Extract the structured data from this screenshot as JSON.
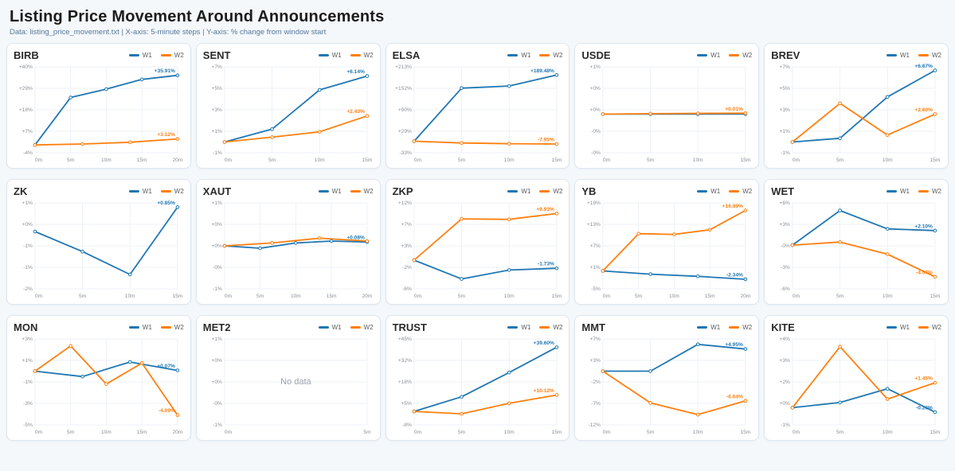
{
  "header": {
    "title": "Listing Price Movement Around Announcements",
    "subtitle": "Data: listing_price_movement.txt | X-axis: 5-minute steps | Y-axis: % change from window start"
  },
  "legend": {
    "w1": "W1",
    "w2": "W2"
  },
  "colors": {
    "w1": "#1f77b4",
    "w2": "#ff7f0e"
  },
  "no_data_label": "No data",
  "chart_data": [
    {
      "ticker": "BIRB",
      "type": "line",
      "x_max": 20,
      "x_ticks": [
        "0m",
        "5m",
        "10m",
        "15m",
        "20m"
      ],
      "y_tick_labels": [
        "+40%",
        "+29%",
        "+18%",
        "+7%",
        "-4%"
      ],
      "ylim": [
        -4,
        40.3
      ],
      "no_data": false,
      "series": [
        {
          "name": "W1",
          "color_key": "w1",
          "x": [
            0,
            5,
            10,
            15,
            20
          ],
          "y": [
            0,
            24.5,
            28.8,
            33.8,
            35.91
          ],
          "end_label": "+35.91%"
        },
        {
          "name": "W2",
          "color_key": "w2",
          "x": [
            0,
            6.67,
            13.33,
            20
          ],
          "y": [
            0,
            0.5,
            1.4,
            3.12
          ],
          "end_label": "+3.12%"
        }
      ]
    },
    {
      "ticker": "SENT",
      "type": "line",
      "x_max": 15,
      "x_ticks": [
        "0m",
        "5m",
        "10m",
        "15m"
      ],
      "y_tick_labels": [
        "+7%",
        "+5%",
        "+3%",
        "+1%",
        "-1%"
      ],
      "ylim": [
        -1,
        7
      ],
      "no_data": false,
      "series": [
        {
          "name": "W1",
          "color_key": "w1",
          "x": [
            0,
            5,
            10,
            15
          ],
          "y": [
            0,
            1.2,
            4.85,
            6.14
          ],
          "end_label": "+6.14%"
        },
        {
          "name": "W2",
          "color_key": "w2",
          "x": [
            0,
            5,
            10,
            15
          ],
          "y": [
            0,
            0.45,
            0.95,
            2.43
          ],
          "end_label": "+2.43%"
        }
      ]
    },
    {
      "ticker": "ELSA",
      "type": "line",
      "x_max": 15,
      "x_ticks": [
        "0m",
        "5m",
        "10m",
        "15m"
      ],
      "y_tick_labels": [
        "+213%",
        "+152%",
        "+90%",
        "+29%",
        "-33%"
      ],
      "ylim": [
        -33,
        213
      ],
      "no_data": false,
      "series": [
        {
          "name": "W1",
          "color_key": "w1",
          "x": [
            0,
            5,
            10,
            15
          ],
          "y": [
            0,
            152,
            158,
            189.48
          ],
          "end_label": "+189.48%"
        },
        {
          "name": "W2",
          "color_key": "w2",
          "x": [
            0,
            5,
            10,
            15
          ],
          "y": [
            0,
            -5,
            -7,
            -7.95
          ],
          "end_label": "-7.95%"
        }
      ]
    },
    {
      "ticker": "USDE",
      "type": "line",
      "x_max": 15,
      "x_ticks": [
        "0m",
        "5m",
        "10m",
        "15m"
      ],
      "y_tick_labels": [
        "+1%",
        "+0%",
        "+0%",
        "-0%",
        "-0%"
      ],
      "ylim": [
        -0.45,
        0.55
      ],
      "no_data": false,
      "series": [
        {
          "name": "W1",
          "color_key": "w1",
          "x": [
            0,
            5,
            10,
            15
          ],
          "y": [
            0,
            0,
            0,
            0
          ],
          "end_label": ""
        },
        {
          "name": "W2",
          "color_key": "w2",
          "x": [
            0,
            5,
            10,
            15
          ],
          "y": [
            0,
            0.005,
            0.008,
            0.01
          ],
          "end_label": "+0.01%"
        }
      ]
    },
    {
      "ticker": "BREV",
      "type": "line",
      "x_max": 15,
      "x_ticks": [
        "0m",
        "5m",
        "10m",
        "15m"
      ],
      "y_tick_labels": [
        "+7%",
        "+5%",
        "+3%",
        "+1%",
        "-1%"
      ],
      "ylim": [
        -1,
        7
      ],
      "no_data": false,
      "series": [
        {
          "name": "W1",
          "color_key": "w1",
          "x": [
            0,
            5,
            10,
            15
          ],
          "y": [
            0,
            0.35,
            4.2,
            6.67
          ],
          "end_label": "+6.67%"
        },
        {
          "name": "W2",
          "color_key": "w2",
          "x": [
            0,
            5,
            10,
            15
          ],
          "y": [
            0,
            3.6,
            0.65,
            2.6
          ],
          "end_label": "+2.60%"
        }
      ]
    },
    {
      "ticker": "ZK",
      "type": "line",
      "x_max": 15,
      "x_ticks": [
        "0m",
        "5m",
        "10m",
        "15m"
      ],
      "y_tick_labels": [
        "+1%",
        "+0%",
        "-1%",
        "-1%",
        "-2%"
      ],
      "ylim": [
        -2,
        1
      ],
      "no_data": false,
      "series": [
        {
          "name": "W1",
          "color_key": "w1",
          "x": [
            0,
            5,
            10,
            15
          ],
          "y": [
            0,
            -0.7,
            -1.5,
            0.85
          ],
          "end_label": "+0.85%"
        }
      ]
    },
    {
      "ticker": "XAUT",
      "type": "line",
      "x_max": 20,
      "x_ticks": [
        "0m",
        "5m",
        "10m",
        "15m",
        "20m"
      ],
      "y_tick_labels": [
        "+1%",
        "+0%",
        "+0%",
        "-0%",
        "-1%"
      ],
      "ylim": [
        -0.9,
        0.9
      ],
      "no_data": false,
      "series": [
        {
          "name": "W1",
          "color_key": "w1",
          "x": [
            0,
            5,
            10,
            15,
            20
          ],
          "y": [
            0,
            -0.05,
            0.06,
            0.1,
            0.08
          ],
          "end_label": "+0.08%"
        },
        {
          "name": "W2",
          "color_key": "w2",
          "x": [
            0,
            6.67,
            13.33,
            20
          ],
          "y": [
            0,
            0.06,
            0.16,
            0.1
          ],
          "end_label": ""
        }
      ]
    },
    {
      "ticker": "ZKP",
      "type": "line",
      "x_max": 15,
      "x_ticks": [
        "0m",
        "5m",
        "10m",
        "15m"
      ],
      "y_tick_labels": [
        "+12%",
        "+7%",
        "+3%",
        "-2%",
        "-6%"
      ],
      "ylim": [
        -6.1,
        12.2
      ],
      "no_data": false,
      "series": [
        {
          "name": "W1",
          "color_key": "w1",
          "x": [
            0,
            5,
            10,
            15
          ],
          "y": [
            0,
            -4.0,
            -2.1,
            -1.73
          ],
          "end_label": "-1.73%"
        },
        {
          "name": "W2",
          "color_key": "w2",
          "x": [
            0,
            5,
            10,
            15
          ],
          "y": [
            0,
            8.8,
            8.7,
            9.93
          ],
          "end_label": "+9.93%"
        }
      ]
    },
    {
      "ticker": "YB",
      "type": "line",
      "x_max": 20,
      "x_ticks": [
        "0m",
        "5m",
        "10m",
        "15m",
        "20m"
      ],
      "y_tick_labels": [
        "+19%",
        "+13%",
        "+7%",
        "+1%",
        "-5%"
      ],
      "ylim": [
        -5,
        19
      ],
      "no_data": false,
      "series": [
        {
          "name": "W1",
          "color_key": "w1",
          "x": [
            0,
            6.67,
            13.33,
            20
          ],
          "y": [
            0,
            -0.9,
            -1.5,
            -2.34
          ],
          "end_label": "-2.34%"
        },
        {
          "name": "W2",
          "color_key": "w2",
          "x": [
            0,
            5,
            10,
            15,
            20
          ],
          "y": [
            0,
            10.4,
            10.2,
            11.5,
            16.89
          ],
          "end_label": "+16.89%"
        }
      ]
    },
    {
      "ticker": "WET",
      "type": "line",
      "x_max": 15,
      "x_ticks": [
        "0m",
        "5m",
        "10m",
        "15m"
      ],
      "y_tick_labels": [
        "+6%",
        "+3%",
        "-0%",
        "-3%",
        "-6%"
      ],
      "ylim": [
        -6.3,
        6.1
      ],
      "no_data": false,
      "series": [
        {
          "name": "W1",
          "color_key": "w1",
          "x": [
            0,
            5,
            10,
            15
          ],
          "y": [
            0,
            5.0,
            2.35,
            2.1
          ],
          "end_label": "+2.10%"
        },
        {
          "name": "W2",
          "color_key": "w2",
          "x": [
            0,
            5,
            10,
            15
          ],
          "y": [
            0,
            0.45,
            -1.3,
            -4.57
          ],
          "end_label": "-4.57%"
        }
      ]
    },
    {
      "ticker": "MON",
      "type": "line",
      "x_max": 20,
      "x_ticks": [
        "0m",
        "5m",
        "10m",
        "15m",
        "20m"
      ],
      "y_tick_labels": [
        "+3%",
        "+1%",
        "-1%",
        "-3%",
        "-5%"
      ],
      "ylim": [
        -5,
        3
      ],
      "no_data": false,
      "series": [
        {
          "name": "W1",
          "color_key": "w1",
          "x": [
            0,
            6.67,
            13.33,
            20
          ],
          "y": [
            0,
            -0.5,
            0.85,
            0.07
          ],
          "end_label": "+0.07%"
        },
        {
          "name": "W2",
          "color_key": "w2",
          "x": [
            0,
            5,
            10,
            15,
            20
          ],
          "y": [
            0,
            2.35,
            -1.2,
            0.75,
            -4.09
          ],
          "end_label": "-4.09%"
        }
      ]
    },
    {
      "ticker": "MET2",
      "type": "line",
      "x_max": 5,
      "x_ticks": [
        "0m",
        "5m"
      ],
      "y_tick_labels": [
        "+1%",
        "+0%",
        "+0%",
        "-0%",
        "-1%"
      ],
      "ylim": [
        -1,
        1
      ],
      "no_data": true,
      "series": []
    },
    {
      "ticker": "TRUST",
      "type": "line",
      "x_max": 15,
      "x_ticks": [
        "0m",
        "5m",
        "10m",
        "15m"
      ],
      "y_tick_labels": [
        "+45%",
        "+32%",
        "+18%",
        "+5%",
        "-8%"
      ],
      "ylim": [
        -8.3,
        44.7
      ],
      "no_data": false,
      "series": [
        {
          "name": "W1",
          "color_key": "w1",
          "x": [
            0,
            5,
            10,
            15
          ],
          "y": [
            0,
            9,
            24,
            39.6
          ],
          "end_label": "+39.60%"
        },
        {
          "name": "W2",
          "color_key": "w2",
          "x": [
            0,
            5,
            10,
            15
          ],
          "y": [
            0,
            -1.5,
            5,
            10.12
          ],
          "end_label": "+10.12%"
        }
      ]
    },
    {
      "ticker": "MMT",
      "type": "line",
      "x_max": 15,
      "x_ticks": [
        "0m",
        "5m",
        "10m",
        "15m"
      ],
      "y_tick_labels": [
        "+7%",
        "+3%",
        "-2%",
        "-7%",
        "-12%"
      ],
      "ylim": [
        -12,
        7.2
      ],
      "no_data": false,
      "series": [
        {
          "name": "W1",
          "color_key": "w1",
          "x": [
            0,
            5,
            10,
            15
          ],
          "y": [
            0,
            0,
            6.0,
            4.95
          ],
          "end_label": "+4.95%"
        },
        {
          "name": "W2",
          "color_key": "w2",
          "x": [
            0,
            5,
            10,
            15
          ],
          "y": [
            0,
            -7.1,
            -9.7,
            -6.64
          ],
          "end_label": "-6.64%"
        }
      ]
    },
    {
      "ticker": "KITE",
      "type": "line",
      "x_max": 15,
      "x_ticks": [
        "0m",
        "5m",
        "10m",
        "15m"
      ],
      "y_tick_labels": [
        "+4%",
        "+3%",
        "+2%",
        "+0%",
        "-1%"
      ],
      "ylim": [
        -1,
        4
      ],
      "no_data": false,
      "series": [
        {
          "name": "W1",
          "color_key": "w1",
          "x": [
            0,
            5,
            10,
            15
          ],
          "y": [
            0,
            0.3,
            1.1,
            -0.26
          ],
          "end_label": "-0.26%"
        },
        {
          "name": "W2",
          "color_key": "w2",
          "x": [
            0,
            5,
            10,
            15
          ],
          "y": [
            0,
            3.55,
            0.5,
            1.45
          ],
          "end_label": "+1.45%"
        }
      ]
    }
  ]
}
